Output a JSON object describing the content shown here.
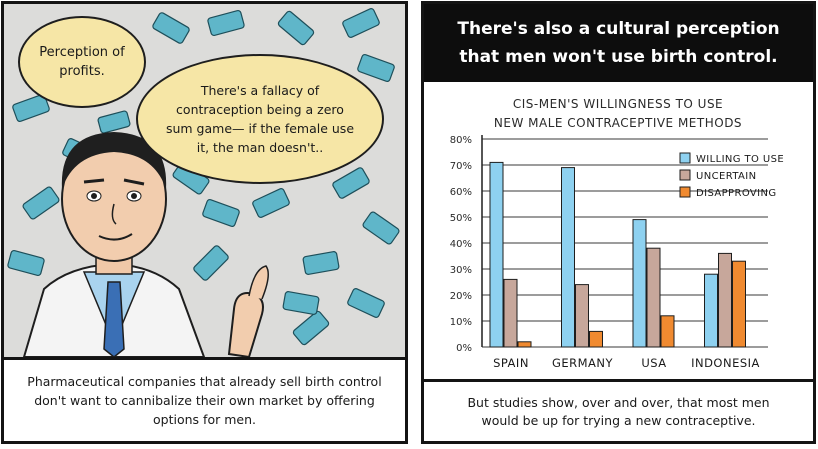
{
  "left_panel": {
    "bubble_small": "Perception of profits.",
    "bubble_large": "There's a fallacy of contraception being a zero sum game— if the female use it, the man doesn't..",
    "caption": "Pharmaceutical companies that already sell birth control don't want to cannibalize their own market by offering options for men."
  },
  "right_panel": {
    "header_line1": "There's also a cultural perception",
    "header_line2": "that men won't use birth control.",
    "caption_line1": "But studies show, over and over, that most men",
    "caption_line2": "would be up for trying a new contraceptive."
  },
  "colors": {
    "willing": "#8ed1f0",
    "uncertain": "#c7a79b",
    "disapproving": "#f08a30",
    "bubble": "#f6e6a6",
    "money": "#5fb6c9"
  },
  "chart_data": {
    "type": "bar",
    "title_line1": "CIS-MEN'S WILLINGNESS TO USE",
    "title_line2": "NEW MALE CONTRACEPTIVE METHODS",
    "categories": [
      "SPAIN",
      "GERMANY",
      "USA",
      "INDONESIA"
    ],
    "series": [
      {
        "name": "WILLING TO USE",
        "values": [
          71,
          69,
          49,
          28
        ]
      },
      {
        "name": "UNCERTAIN",
        "values": [
          26,
          24,
          38,
          36
        ]
      },
      {
        "name": "DISAPPROVING",
        "values": [
          2,
          6,
          12,
          33
        ]
      }
    ],
    "yticks": [
      "0%",
      "10%",
      "20%",
      "30%",
      "40%",
      "50%",
      "60%",
      "70%",
      "80%"
    ],
    "ylim": [
      0,
      80
    ],
    "legend_position": "top-right"
  }
}
